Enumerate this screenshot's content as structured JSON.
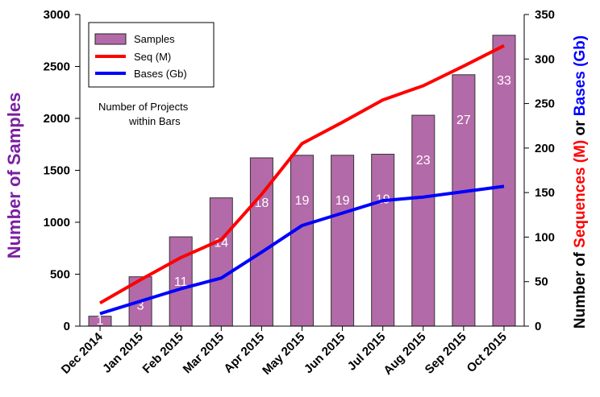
{
  "chart_data": {
    "type": "bar",
    "categories": [
      "Dec 2014",
      "Jan 2015",
      "Feb 2015",
      "Mar 2015",
      "Apr 2015",
      "May 2015",
      "Jun 2015",
      "Jul 2015",
      "Aug 2015",
      "Sep 2015",
      "Oct 2015"
    ],
    "bars": {
      "name": "Samples",
      "values": [
        95,
        475,
        860,
        1235,
        1620,
        1645,
        1645,
        1655,
        2030,
        2420,
        2800
      ],
      "labels": [
        "1",
        "3",
        "11",
        "14",
        "18",
        "19",
        "19",
        "19",
        "23",
        "27",
        "33"
      ],
      "color": "#b36aa8"
    },
    "lines": [
      {
        "name": "Seq (M)",
        "values": [
          26,
          52,
          77,
          97,
          148,
          205,
          229,
          254,
          270,
          292,
          315
        ],
        "color": "#ff0000"
      },
      {
        "name": "Bases (Gb)",
        "values": [
          14,
          28,
          42,
          54,
          83,
          113,
          127,
          141,
          145,
          151,
          157
        ],
        "color": "#0000ff"
      }
    ],
    "left_axis": {
      "label": "Number of Samples",
      "label_color": "#7b1fa2",
      "ylim": [
        0,
        3000
      ],
      "ticks": [
        0,
        500,
        1000,
        1500,
        2000,
        2500,
        3000
      ]
    },
    "right_axis": {
      "label_parts": [
        {
          "text": "Number of ",
          "color": "#000000"
        },
        {
          "text": "Sequences (M)",
          "color": "#ff0000"
        },
        {
          "text": " or ",
          "color": "#000000"
        },
        {
          "text": "Bases (Gb)",
          "color": "#0000ff"
        }
      ],
      "ylim": [
        0,
        350
      ],
      "ticks": [
        0,
        50,
        100,
        150,
        200,
        250,
        300,
        350
      ]
    },
    "annotation": [
      "Number of Projects",
      "within Bars"
    ],
    "legend_position": "top-left",
    "grid": false
  }
}
